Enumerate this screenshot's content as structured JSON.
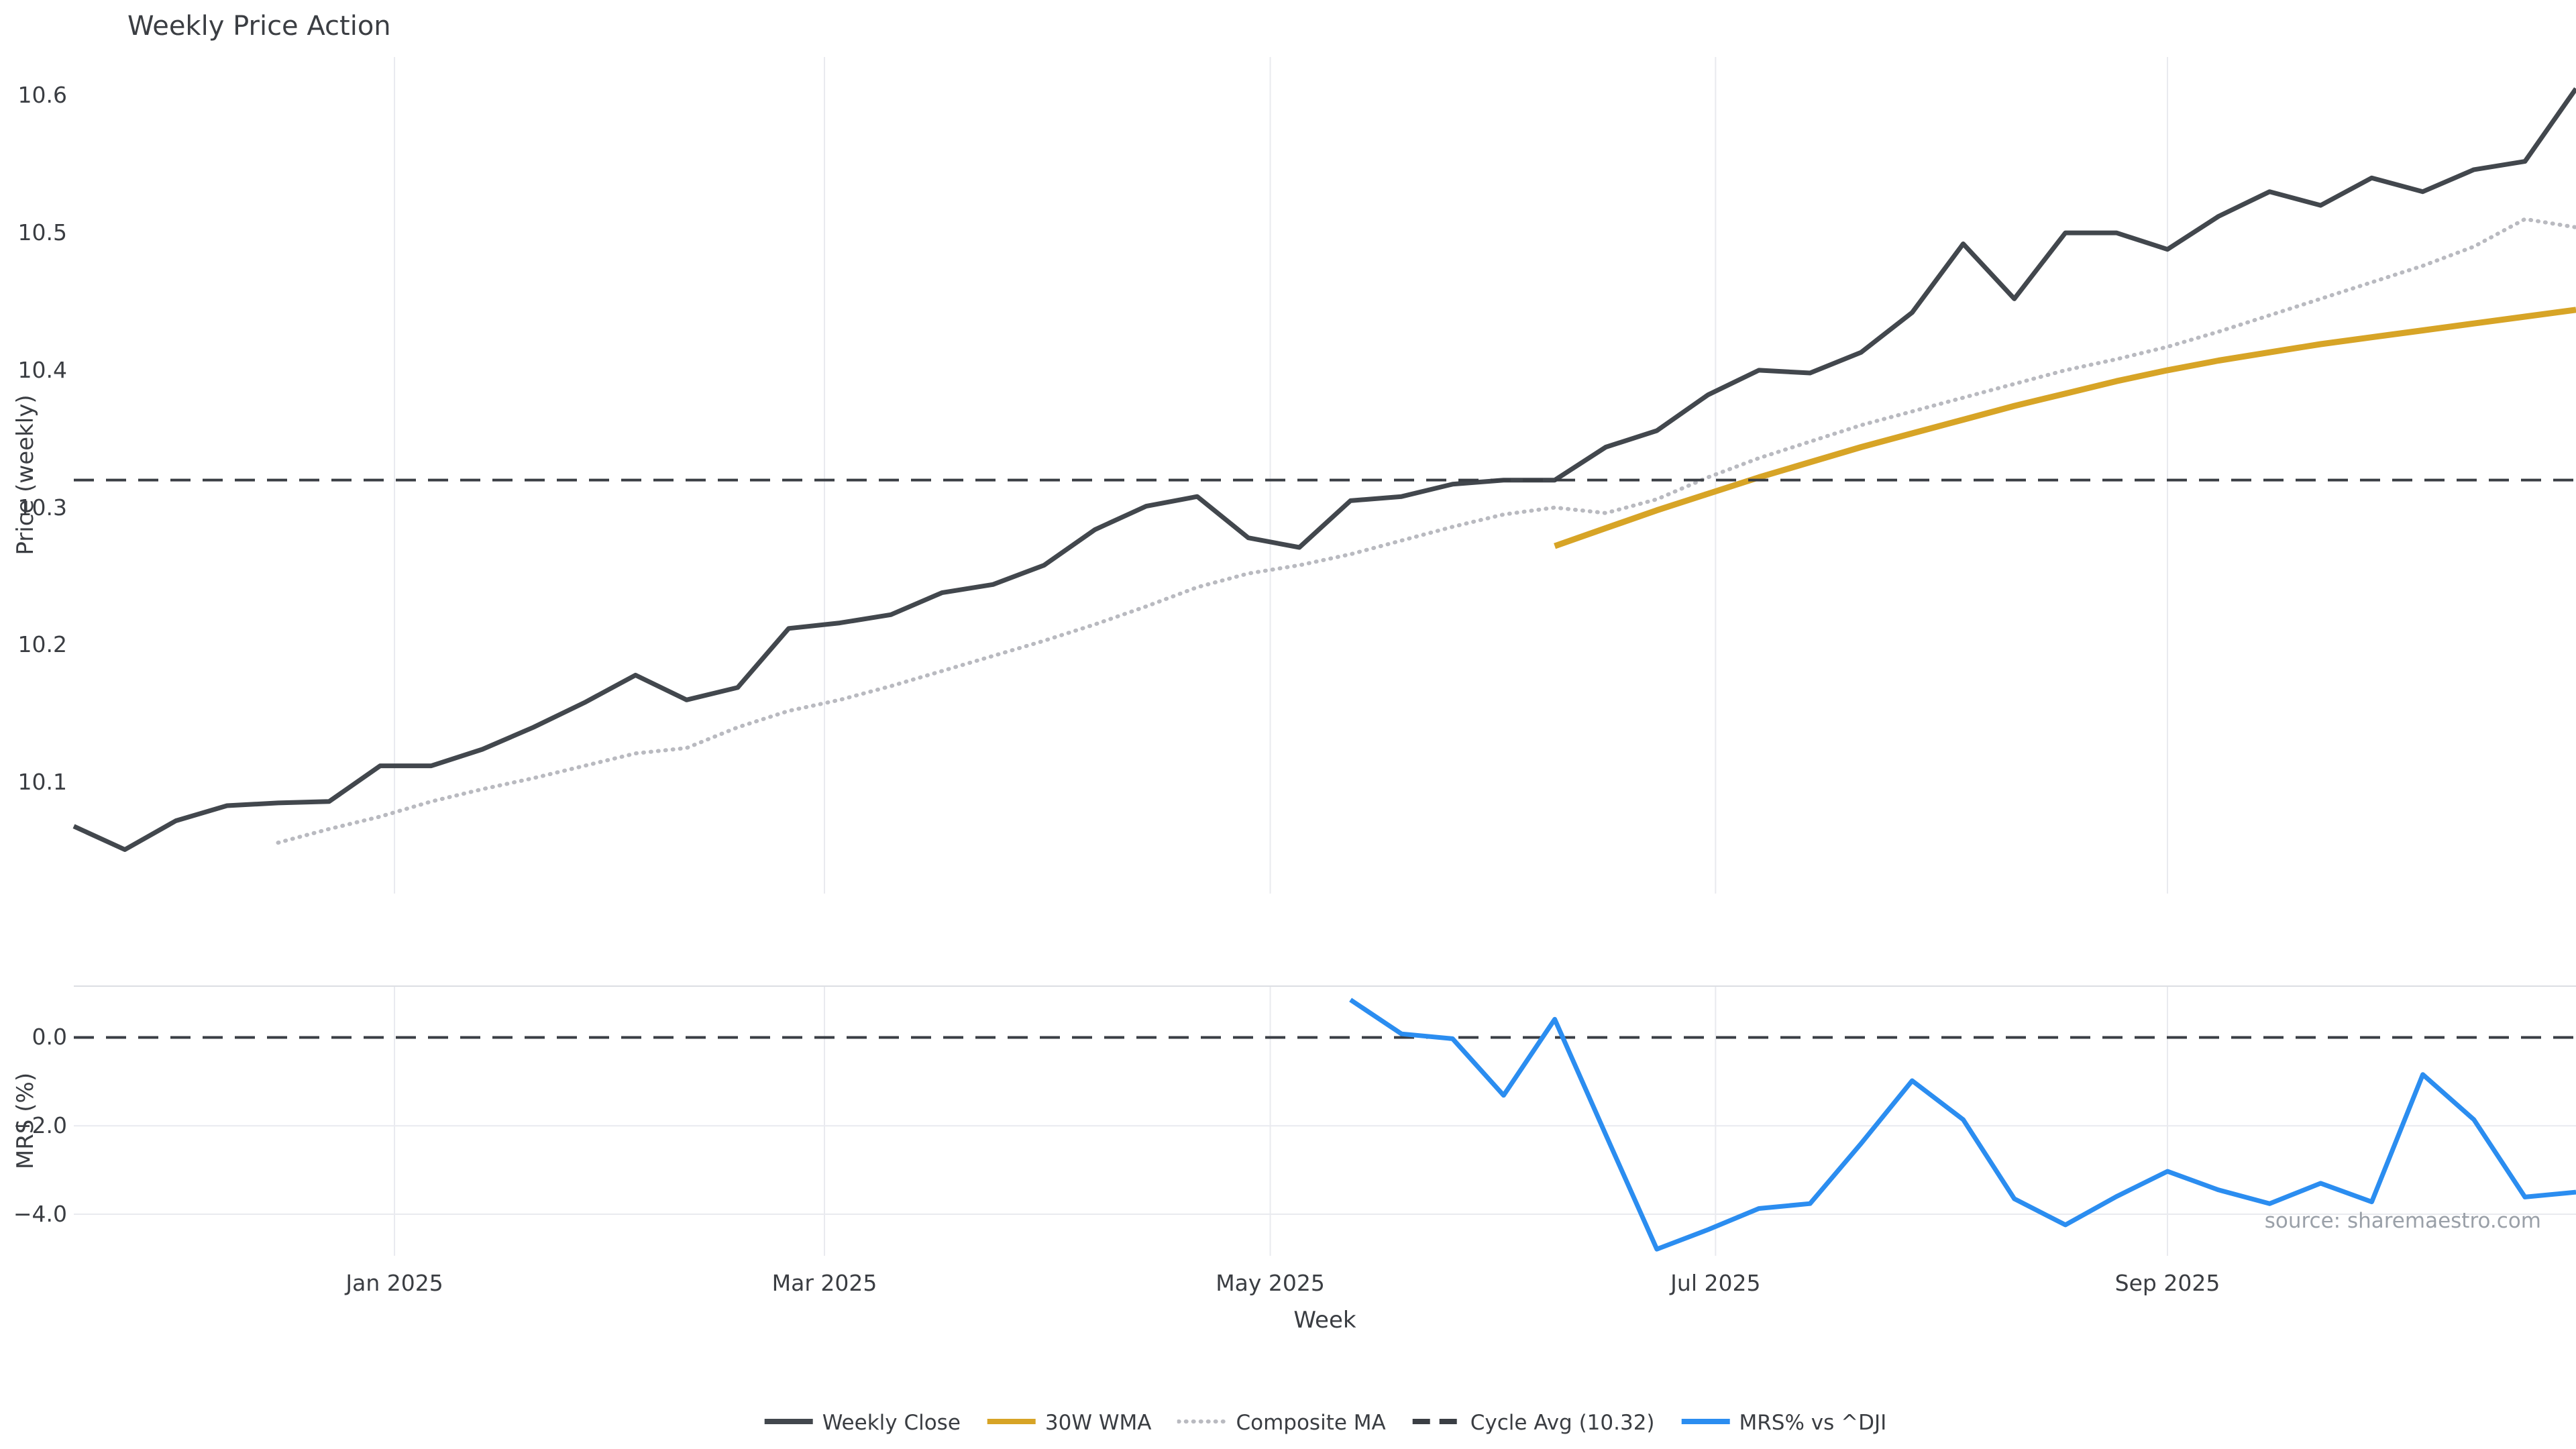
{
  "page": {
    "title": "Weekly Price Action",
    "source": "source: sharemaestro.com"
  },
  "chart_data": {
    "type": "line",
    "title": "Weekly Price Action",
    "x_axis": {
      "label": "Week",
      "tick_labels": [
        "Jan 2025",
        "Mar 2025",
        "May 2025",
        "Jul 2025",
        "Sep 2025"
      ],
      "tick_weeks": [
        6.28,
        14.7,
        23.43,
        32.15,
        41.0
      ],
      "week_range": [
        0,
        49
      ]
    },
    "panels": [
      {
        "id": "price",
        "ylabel": "Price (weekly)",
        "ylim": [
          10.019,
          10.628
        ],
        "grid": "vertical",
        "yticks": [
          {
            "v": 10.6,
            "label": "10.6"
          },
          {
            "v": 10.5,
            "label": "10.5"
          },
          {
            "v": 10.4,
            "label": "10.4"
          },
          {
            "v": 10.3,
            "label": "10.3"
          },
          {
            "v": 10.2,
            "label": "10.2"
          },
          {
            "v": 10.1,
            "label": "10.1"
          }
        ]
      },
      {
        "id": "mrs",
        "ylabel": "MRS (%)",
        "ylim": [
          -4.94,
          1.16
        ],
        "grid": "horizontal",
        "hgrid_values": [
          -2,
          -4
        ],
        "yticks": [
          {
            "v": 0,
            "label": "0.0"
          },
          {
            "v": -2,
            "label": "−2.0"
          },
          {
            "v": -4,
            "label": "−4.0"
          }
        ]
      }
    ],
    "series": [
      {
        "name": "Weekly Close",
        "panel": "price",
        "color": "#42474d",
        "width": 7,
        "dash": null,
        "start_week": 0,
        "values": [
          10.068,
          10.051,
          10.072,
          10.083,
          10.085,
          10.086,
          10.112,
          10.112,
          10.124,
          10.14,
          10.158,
          10.178,
          10.16,
          10.169,
          10.212,
          10.216,
          10.222,
          10.238,
          10.244,
          10.258,
          10.284,
          10.301,
          10.308,
          10.278,
          10.271,
          10.305,
          10.308,
          10.317,
          10.32,
          10.32,
          10.344,
          10.356,
          10.382,
          10.4,
          10.398,
          10.413,
          10.442,
          10.492,
          10.452,
          10.5,
          10.5,
          10.488,
          10.512,
          10.53,
          10.52,
          10.54,
          10.53,
          10.546,
          10.552,
          10.605
        ]
      },
      {
        "name": "30W WMA",
        "panel": "price",
        "color": "#d7a426",
        "width": 9,
        "dash": null,
        "start_week": 29,
        "values": [
          10.272,
          10.285,
          10.298,
          10.31,
          10.322,
          10.333,
          10.344,
          10.354,
          10.364,
          10.374,
          10.383,
          10.392,
          10.4,
          10.407,
          10.413,
          10.419,
          10.424,
          10.429,
          10.434,
          10.439,
          10.444
        ]
      },
      {
        "name": "Composite MA",
        "panel": "price",
        "color": "#b9bac0",
        "width": 6,
        "dash": "1 10",
        "linecap": "round",
        "start_week": 4,
        "values": [
          10.056,
          10.066,
          10.075,
          10.086,
          10.095,
          10.103,
          10.112,
          10.121,
          10.125,
          10.14,
          10.152,
          10.16,
          10.17,
          10.181,
          10.192,
          10.203,
          10.215,
          10.228,
          10.242,
          10.252,
          10.258,
          10.266,
          10.276,
          10.286,
          10.295,
          10.3,
          10.296,
          10.306,
          10.322,
          10.336,
          10.348,
          10.36,
          10.37,
          10.38,
          10.39,
          10.4,
          10.408,
          10.417,
          10.428,
          10.44,
          10.452,
          10.464,
          10.476,
          10.49,
          10.51,
          10.504
        ]
      },
      {
        "name": "Cycle Avg (10.32)",
        "panel": "price",
        "type": "hline",
        "color": "#3a3e44",
        "width": 4,
        "dash": "30 18",
        "value": 10.32
      },
      {
        "name": "MRS% vs ^DJI",
        "panel": "mrs",
        "color": "#2b8df0",
        "width": 7,
        "dash": null,
        "start_week": 25,
        "values": [
          0.85,
          0.08,
          -0.03,
          -1.31,
          0.41,
          -2.2,
          -4.79,
          -4.35,
          -3.87,
          -3.76,
          -2.4,
          -0.98,
          -1.86,
          -3.65,
          -4.24,
          -3.6,
          -3.03,
          -3.45,
          -3.76,
          -3.3,
          -3.72,
          -0.84,
          -1.86,
          -3.61,
          -3.5
        ]
      }
    ],
    "ref_lines": [
      {
        "panel": "price",
        "value": 10.32,
        "label": "Cycle Avg (10.32)"
      },
      {
        "panel": "mrs",
        "value": 0.0,
        "label": "zero line"
      }
    ],
    "zero_line": {
      "panel": "mrs",
      "value": 0,
      "color": "#3a3e44",
      "width": 4,
      "dash": "30 18"
    },
    "legend": [
      {
        "label": "Weekly Close",
        "color": "#42474d",
        "dash": "solid"
      },
      {
        "label": "30W WMA",
        "color": "#d7a426",
        "dash": "solid"
      },
      {
        "label": "Composite MA",
        "color": "#b9bac0",
        "dash": "dotted"
      },
      {
        "label": "Cycle Avg (10.32)",
        "color": "#3a3e44",
        "dash": "dashed"
      },
      {
        "label": "MRS% vs ^DJI",
        "color": "#2b8df0",
        "dash": "solid"
      }
    ],
    "legend_position": "bottom-center",
    "style": {
      "background": "#ffffff",
      "grid_color": "#e9eaef",
      "spine_color": "#dcdee3",
      "text_color": "#3a3d42",
      "muted_text_color": "#9aa0a8"
    }
  }
}
